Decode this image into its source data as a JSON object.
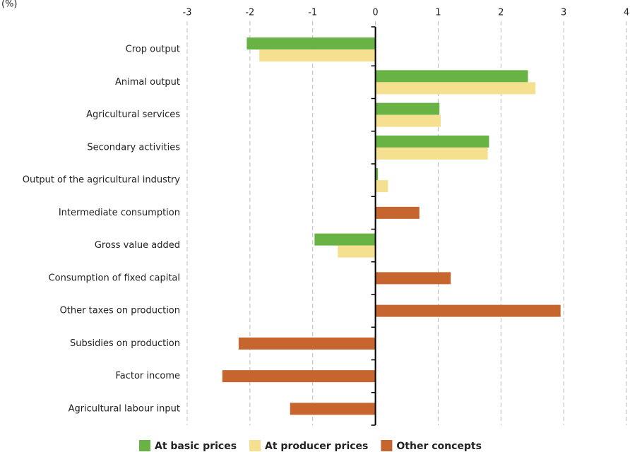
{
  "chart_data": {
    "type": "bar",
    "orientation": "horizontal",
    "axis_label": "(%)",
    "categories": [
      "Crop output",
      "Animal output",
      "Agricultural services",
      "Secondary activities",
      "Output of the agricultural industry",
      "Intermediate consumption",
      "Gross value added",
      "Consumption of fixed capital",
      "Other taxes on production",
      "Subsidies on production",
      "Factor income",
      "Agricultural labour input"
    ],
    "series": [
      {
        "name": "At basic prices",
        "color": "#69b345",
        "values": [
          -2.05,
          2.43,
          1.02,
          1.81,
          0.04,
          null,
          -0.97,
          null,
          null,
          null,
          null,
          null
        ]
      },
      {
        "name": "At producer prices",
        "color": "#f4e08e",
        "values": [
          -1.85,
          2.55,
          1.04,
          1.79,
          0.2,
          null,
          -0.6,
          null,
          null,
          null,
          null,
          null
        ]
      },
      {
        "name": "Other concepts",
        "color": "#c6662e",
        "values": [
          null,
          null,
          null,
          null,
          null,
          0.7,
          null,
          1.2,
          2.95,
          -2.18,
          -2.44,
          -1.36
        ]
      }
    ],
    "xlim": [
      -3,
      4
    ],
    "xticks": [
      -3,
      -2,
      -1,
      0,
      1,
      2,
      3,
      4
    ],
    "grid": true,
    "legend": "bottom"
  }
}
